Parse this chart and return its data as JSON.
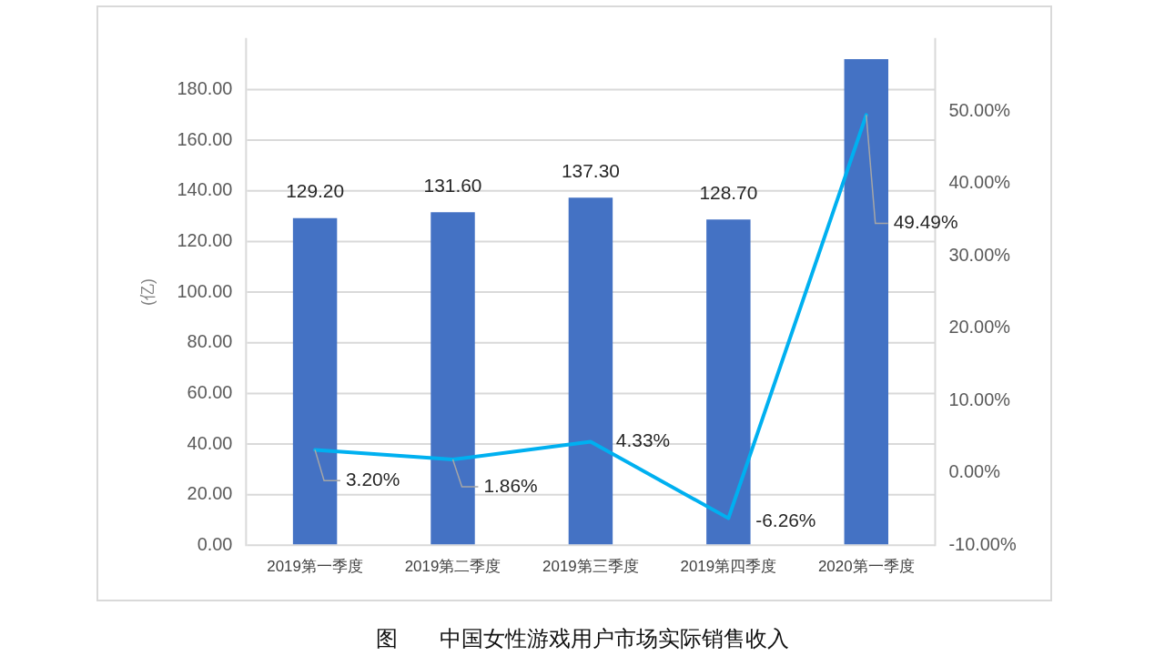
{
  "chart_data": {
    "type": "bar",
    "title": "图      中国女性游戏用户市场实际销售收入",
    "ylabel": "(亿)",
    "categories": [
      "2019第一季度",
      "2019第二季度",
      "2019第三季度",
      "2019第四季度",
      "2020第一季度"
    ],
    "series": [
      {
        "color": "#4472c4",
        "values": [
          129.2,
          131.6,
          137.3,
          128.7,
          192
        ],
        "value_labels": [
          "129.20",
          "131.60",
          "137.30",
          "128.70",
          null
        ]
      },
      {
        "type": "line",
        "axis": "y2",
        "color": "#00b0f0",
        "values": [
          3.2,
          1.86,
          4.33,
          -6.26,
          49.49
        ],
        "value_labels": [
          "3.20%",
          "1.86%",
          "4.33%",
          "-6.26%",
          "49.49%"
        ]
      }
    ],
    "ylim": [
      0,
      200
    ],
    "yticks": [
      {
        "value": 0,
        "label": "0.00"
      },
      {
        "value": 20,
        "label": "20.00"
      },
      {
        "value": 40,
        "label": "40.00"
      },
      {
        "value": 60,
        "label": "60.00"
      },
      {
        "value": 80,
        "label": "80.00"
      },
      {
        "value": 100,
        "label": "100.00"
      },
      {
        "value": 120,
        "label": "120.00"
      },
      {
        "value": 140,
        "label": "140.00"
      },
      {
        "value": 160,
        "label": "160.00"
      },
      {
        "value": 180,
        "label": "180.00"
      }
    ],
    "y2lim": [
      -10,
      60
    ],
    "y2ticks": [
      {
        "value": -10,
        "label": "-10.00%"
      },
      {
        "value": 0,
        "label": "0.00%"
      },
      {
        "value": 10,
        "label": "10.00%"
      },
      {
        "value": 20,
        "label": "20.00%"
      },
      {
        "value": 30,
        "label": "30.00%"
      },
      {
        "value": 40,
        "label": "40.00%"
      },
      {
        "value": 50,
        "label": "50.00%"
      }
    ],
    "grid": "y",
    "legend": false
  }
}
